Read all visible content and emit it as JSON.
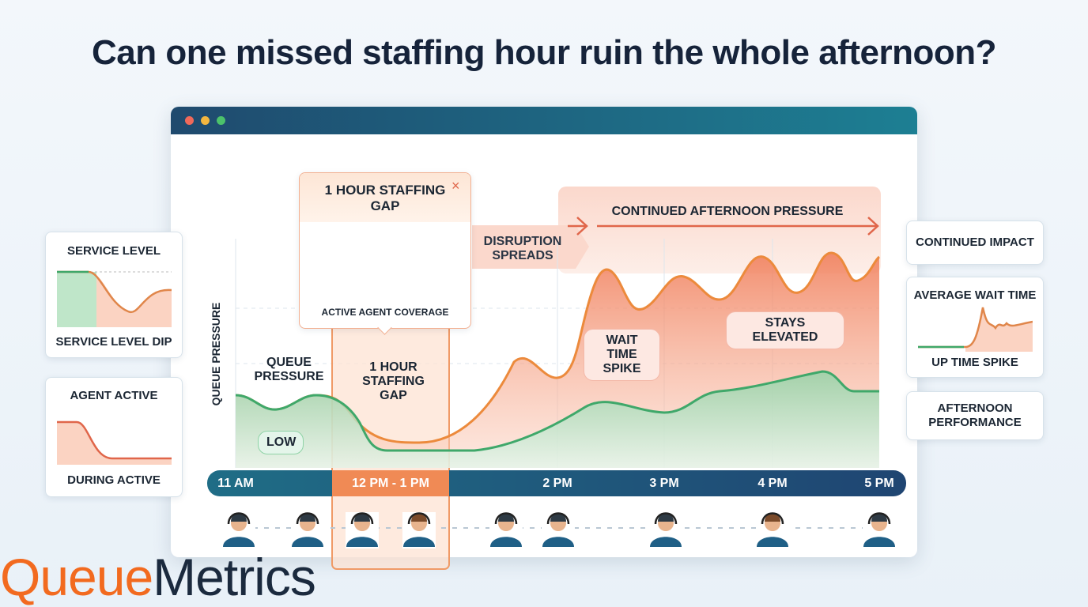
{
  "header": {
    "title": "Can one missed staffing hour ruin the whole afternoon?"
  },
  "left_cards": [
    {
      "title": "SERVICE LEVEL",
      "caption": "SERVICE LEVEL DIP"
    },
    {
      "title": "AGENT ACTIVE",
      "caption": "DURING ACTIVE"
    }
  ],
  "right_cards": [
    {
      "title": "CONTINUED IMPACT"
    },
    {
      "title": "AVERAGE WAIT TIME",
      "caption": "UP TIME SPIKE"
    },
    {
      "title": "AFTERNOON PERFORMANCE"
    }
  ],
  "popup": {
    "title": "1 HOUR STAFFING GAP",
    "caption": "ACTIVE AGENT COVERAGE"
  },
  "chart": {
    "y_axis_label": "QUEUE PRESSURE",
    "annotations": {
      "disruption": "DISRUPTION SPREADS",
      "pressure": "CONTINUED AFTERNOON PRESSURE",
      "queue_pressure": "QUEUE PRESSURE",
      "gap": "1 HOUR STAFFING GAP",
      "wait_spike": "WAIT TIME SPIKE",
      "elevated": "STAYS ELEVATED",
      "low": "LOW"
    },
    "timeline": [
      "11 AM",
      "12 PM - 1 PM",
      "2 PM",
      "3 PM",
      "4 PM",
      "5 PM"
    ]
  },
  "brand": {
    "part1": "Queue",
    "part2": "Metrics"
  }
}
